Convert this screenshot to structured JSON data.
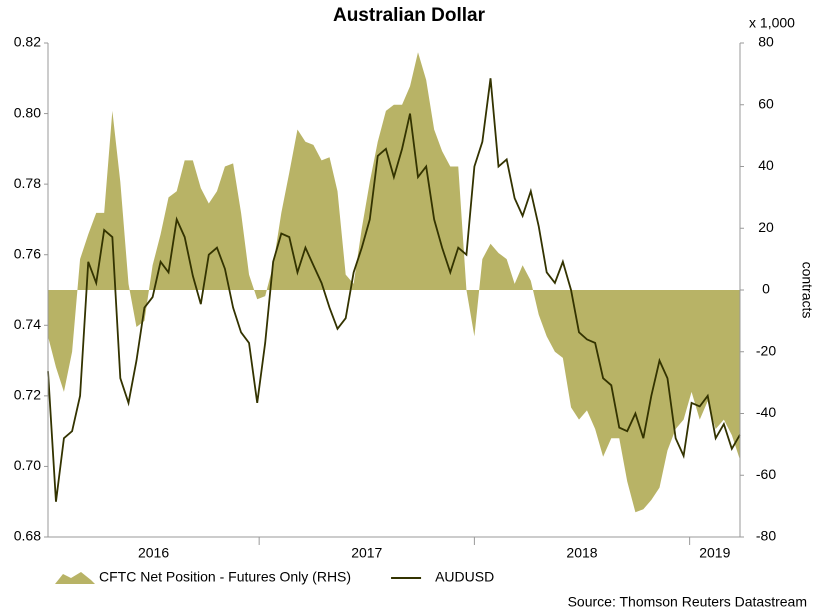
{
  "chart_data": {
    "type": "line-area",
    "title": "Australian Dollar",
    "y2label": "contracts",
    "y2unit": "x 1,000",
    "source": "Source: Thomson Reuters Datastream",
    "x": [
      2016.019,
      2016.056,
      2016.093,
      2016.131,
      2016.168,
      2016.206,
      2016.243,
      2016.28,
      2016.318,
      2016.355,
      2016.393,
      2016.43,
      2016.467,
      2016.505,
      2016.542,
      2016.579,
      2016.617,
      2016.654,
      2016.692,
      2016.729,
      2016.766,
      2016.804,
      2016.841,
      2016.879,
      2016.916,
      2016.953,
      2016.991,
      2017.028,
      2017.065,
      2017.103,
      2017.14,
      2017.178,
      2017.215,
      2017.252,
      2017.29,
      2017.327,
      2017.364,
      2017.402,
      2017.439,
      2017.477,
      2017.514,
      2017.551,
      2017.589,
      2017.626,
      2017.664,
      2017.701,
      2017.738,
      2017.776,
      2017.813,
      2017.85,
      2017.888,
      2017.925,
      2017.963,
      2018.0,
      2018.037,
      2018.075,
      2018.112,
      2018.15,
      2018.187,
      2018.224,
      2018.262,
      2018.299,
      2018.336,
      2018.374,
      2018.411,
      2018.449,
      2018.486,
      2018.523,
      2018.561,
      2018.598,
      2018.636,
      2018.673,
      2018.71,
      2018.748,
      2018.785,
      2018.822,
      2018.86,
      2018.897,
      2018.935,
      2018.972,
      2019.009,
      2019.047,
      2019.084,
      2019.121,
      2019.159,
      2019.196,
      2019.234
    ],
    "series": [
      {
        "name": "CFTC Net Position - Futures Only (RHS)",
        "kind": "area",
        "axis": "y2",
        "color": "#b8b366",
        "values": [
          -15,
          -25,
          -33,
          -20,
          10,
          18,
          25,
          25,
          58,
          35,
          2,
          -12,
          -10,
          8,
          18,
          30,
          32,
          42,
          42,
          33,
          28,
          32,
          40,
          41,
          25,
          5,
          -3,
          -2,
          8,
          25,
          38,
          52,
          48,
          47,
          42,
          43,
          32,
          5,
          2,
          20,
          35,
          48,
          58,
          60,
          60,
          66,
          77,
          68,
          52,
          45,
          40,
          40,
          0,
          -15,
          10,
          15,
          12,
          10,
          2,
          8,
          3,
          -8,
          -15,
          -20,
          -22,
          -38,
          -42,
          -39,
          -45,
          -54,
          -48,
          -48,
          -62,
          -72,
          -71,
          -68,
          -64,
          -52,
          -45,
          -42,
          -33,
          -42,
          -36,
          -45,
          -42,
          -47,
          -55
        ]
      },
      {
        "name": "AUDUSD",
        "kind": "line",
        "color": "#333300",
        "values": [
          0.727,
          0.69,
          0.708,
          0.71,
          0.72,
          0.758,
          0.752,
          0.767,
          0.765,
          0.725,
          0.718,
          0.73,
          0.745,
          0.748,
          0.758,
          0.755,
          0.77,
          0.765,
          0.754,
          0.746,
          0.76,
          0.762,
          0.756,
          0.745,
          0.738,
          0.735,
          0.718,
          0.735,
          0.758,
          0.766,
          0.765,
          0.755,
          0.762,
          0.757,
          0.752,
          0.745,
          0.739,
          0.742,
          0.755,
          0.762,
          0.77,
          0.788,
          0.79,
          0.782,
          0.79,
          0.8,
          0.782,
          0.785,
          0.77,
          0.762,
          0.755,
          0.762,
          0.76,
          0.785,
          0.792,
          0.81,
          0.785,
          0.787,
          0.776,
          0.771,
          0.778,
          0.768,
          0.755,
          0.752,
          0.758,
          0.75,
          0.738,
          0.736,
          0.735,
          0.725,
          0.723,
          0.711,
          0.71,
          0.715,
          0.708,
          0.72,
          0.73,
          0.725,
          0.708,
          0.703,
          0.718,
          0.717,
          0.72,
          0.708,
          0.712,
          0.705,
          0.709
        ]
      }
    ],
    "xlim": [
      2016.019,
      2019.234
    ],
    "xticks": [
      {
        "value": 2016,
        "label": "2016"
      },
      {
        "value": 2017,
        "label": "2017"
      },
      {
        "value": 2018,
        "label": "2018"
      },
      {
        "value": 2019,
        "label": "2019"
      }
    ],
    "ylim": [
      0.68,
      0.82
    ],
    "yticks": [
      0.68,
      {
        "value": 0.7,
        "label": "0.70"
      },
      0.72,
      0.74,
      0.76,
      0.78,
      {
        "value": 0.8,
        "label": "0.80"
      },
      0.82
    ],
    "y2lim": [
      -80,
      80
    ],
    "y2ticks": [
      -80,
      -60,
      -40,
      -20,
      0,
      20,
      40,
      60,
      80
    ],
    "legend": "bottom"
  }
}
